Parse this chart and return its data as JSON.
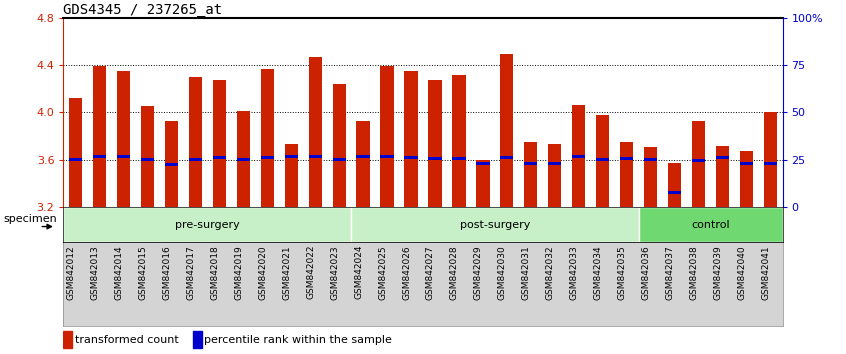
{
  "title": "GDS4345 / 237265_at",
  "samples": [
    "GSM842012",
    "GSM842013",
    "GSM842014",
    "GSM842015",
    "GSM842016",
    "GSM842017",
    "GSM842018",
    "GSM842019",
    "GSM842020",
    "GSM842021",
    "GSM842022",
    "GSM842023",
    "GSM842024",
    "GSM842025",
    "GSM842026",
    "GSM842027",
    "GSM842028",
    "GSM842029",
    "GSM842030",
    "GSM842031",
    "GSM842032",
    "GSM842033",
    "GSM842034",
    "GSM842035",
    "GSM842036",
    "GSM842037",
    "GSM842038",
    "GSM842039",
    "GSM842040",
    "GSM842041"
  ],
  "bar_values": [
    4.12,
    4.39,
    4.35,
    4.05,
    3.93,
    4.3,
    4.27,
    4.01,
    4.37,
    3.73,
    4.47,
    4.24,
    3.93,
    4.39,
    4.35,
    4.27,
    4.32,
    3.6,
    4.49,
    3.75,
    3.73,
    4.06,
    3.98,
    3.75,
    3.71,
    3.57,
    3.93,
    3.72,
    3.67,
    4.0
  ],
  "blue_dot_values": [
    3.6,
    3.63,
    3.63,
    3.6,
    3.56,
    3.6,
    3.62,
    3.6,
    3.62,
    3.63,
    3.63,
    3.6,
    3.63,
    3.63,
    3.62,
    3.61,
    3.61,
    3.57,
    3.62,
    3.57,
    3.57,
    3.63,
    3.6,
    3.61,
    3.6,
    3.32,
    3.59,
    3.62,
    3.57,
    3.57
  ],
  "group_boundaries": [
    {
      "start": 0,
      "end": 12,
      "label": "pre-surgery",
      "color": "#c8f0c8"
    },
    {
      "start": 12,
      "end": 24,
      "label": "post-surgery",
      "color": "#c8f0c8"
    },
    {
      "start": 24,
      "end": 30,
      "label": "control",
      "color": "#70d870"
    }
  ],
  "bar_color": "#cc2200",
  "blue_dot_color": "#0000cc",
  "ymin": 3.2,
  "ymax": 4.8,
  "yticks": [
    3.2,
    3.6,
    4.0,
    4.4,
    4.8
  ],
  "ytick_labels_left": [
    "3.2",
    "3.6",
    "4.0",
    "4.4",
    "4.8"
  ],
  "right_yticks": [
    0,
    25,
    50,
    75,
    100
  ],
  "grid_values": [
    3.6,
    4.0,
    4.4
  ],
  "legend_items": [
    {
      "label": "transformed count",
      "color": "#cc2200"
    },
    {
      "label": "percentile rank within the sample",
      "color": "#0000cc"
    }
  ],
  "specimen_label": "specimen",
  "title_fontsize": 10,
  "tick_fontsize": 8,
  "label_fontsize": 8,
  "sample_fontsize": 6.5
}
